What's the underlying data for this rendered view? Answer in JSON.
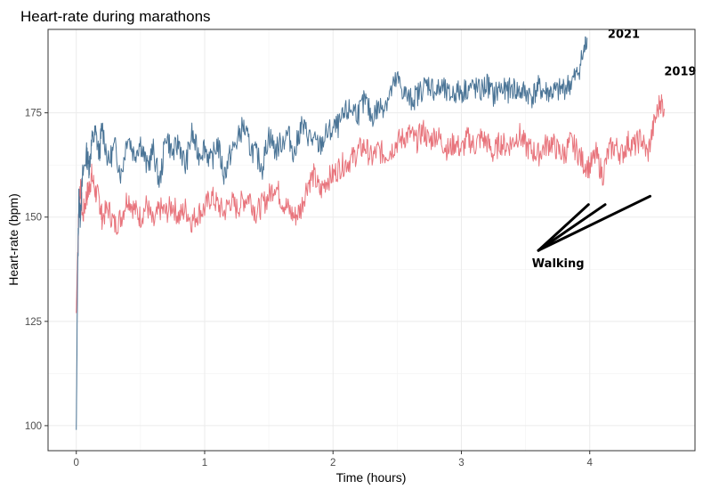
{
  "chart_data": {
    "type": "line",
    "title": "Heart-rate during marathons",
    "xlabel": "Time (hours)",
    "ylabel": "Heart-rate (bpm)",
    "xlim": [
      -0.22,
      4.82
    ],
    "ylim": [
      94,
      195
    ],
    "xticks": [
      0,
      1,
      2,
      3,
      4
    ],
    "yticks": [
      100,
      125,
      150,
      175
    ],
    "grid": true,
    "series": [
      {
        "name": "2021",
        "color": "#4a7496",
        "x": [
          0,
          0.01,
          0.02,
          0.03,
          0.05,
          0.08,
          0.1,
          0.12,
          0.15,
          0.18,
          0.2,
          0.25,
          0.3,
          0.35,
          0.4,
          0.45,
          0.5,
          0.55,
          0.6,
          0.65,
          0.7,
          0.75,
          0.8,
          0.85,
          0.9,
          0.95,
          1.0,
          1.05,
          1.1,
          1.15,
          1.2,
          1.25,
          1.3,
          1.35,
          1.4,
          1.45,
          1.5,
          1.55,
          1.6,
          1.65,
          1.7,
          1.75,
          1.8,
          1.85,
          1.9,
          1.95,
          2.0,
          2.05,
          2.1,
          2.15,
          2.2,
          2.25,
          2.3,
          2.35,
          2.4,
          2.45,
          2.5,
          2.55,
          2.6,
          2.65,
          2.7,
          2.75,
          2.8,
          2.85,
          2.9,
          2.95,
          3.0,
          3.05,
          3.1,
          3.15,
          3.2,
          3.25,
          3.3,
          3.35,
          3.4,
          3.45,
          3.5,
          3.55,
          3.6,
          3.65,
          3.7,
          3.75,
          3.8,
          3.85,
          3.9,
          3.95,
          3.98
        ],
        "y": [
          99,
          135,
          155,
          150,
          160,
          165,
          162,
          168,
          170,
          165,
          172,
          163,
          167,
          160,
          170,
          165,
          168,
          162,
          166,
          158,
          170,
          165,
          168,
          162,
          170,
          165,
          167,
          163,
          168,
          160,
          165,
          168,
          172,
          167,
          165,
          162,
          170,
          166,
          168,
          170,
          165,
          172,
          170,
          168,
          167,
          170,
          171,
          172,
          175,
          176,
          175,
          178,
          174,
          176,
          177,
          180,
          183,
          180,
          178,
          179,
          181,
          182,
          180,
          181,
          179,
          180,
          180,
          181,
          181,
          180,
          182,
          179,
          181,
          180,
          181,
          180,
          180,
          179,
          181,
          180,
          180,
          180,
          181,
          182,
          184,
          189,
          193
        ]
      },
      {
        "name": "2019",
        "color": "#e8747c",
        "x": [
          0,
          0.01,
          0.02,
          0.03,
          0.05,
          0.08,
          0.1,
          0.12,
          0.15,
          0.18,
          0.2,
          0.25,
          0.3,
          0.35,
          0.4,
          0.45,
          0.5,
          0.55,
          0.6,
          0.65,
          0.7,
          0.75,
          0.8,
          0.85,
          0.9,
          0.95,
          1.0,
          1.05,
          1.1,
          1.15,
          1.2,
          1.25,
          1.3,
          1.35,
          1.4,
          1.45,
          1.5,
          1.55,
          1.6,
          1.65,
          1.7,
          1.75,
          1.8,
          1.85,
          1.9,
          1.95,
          2.0,
          2.05,
          2.1,
          2.15,
          2.2,
          2.25,
          2.3,
          2.35,
          2.4,
          2.45,
          2.5,
          2.55,
          2.6,
          2.65,
          2.7,
          2.75,
          2.8,
          2.85,
          2.9,
          2.95,
          3.0,
          3.05,
          3.1,
          3.15,
          3.2,
          3.25,
          3.3,
          3.35,
          3.4,
          3.45,
          3.5,
          3.55,
          3.6,
          3.65,
          3.7,
          3.75,
          3.8,
          3.85,
          3.9,
          3.95,
          4.0,
          4.05,
          4.1,
          4.15,
          4.2,
          4.25,
          4.3,
          4.35,
          4.4,
          4.45,
          4.5,
          4.55,
          4.58
        ],
        "y": [
          127,
          140,
          152,
          158,
          150,
          155,
          157,
          160,
          156,
          154,
          150,
          152,
          148,
          150,
          155,
          152,
          150,
          153,
          148,
          152,
          151,
          153,
          150,
          152,
          149,
          151,
          152,
          155,
          153,
          151,
          154,
          152,
          154,
          155,
          151,
          153,
          155,
          158,
          154,
          152,
          150,
          152,
          158,
          160,
          156,
          159,
          160,
          162,
          163,
          164,
          166,
          167,
          164,
          166,
          165,
          166,
          168,
          169,
          170,
          168,
          171,
          168,
          170,
          168,
          166,
          168,
          166,
          169,
          167,
          169,
          168,
          165,
          168,
          167,
          168,
          170,
          167,
          166,
          165,
          167,
          168,
          166,
          165,
          168,
          166,
          163,
          162,
          165,
          160,
          166,
          167,
          165,
          168,
          167,
          169,
          165,
          172,
          178,
          176
        ]
      }
    ],
    "annotations": [
      {
        "text": "2021",
        "x": 4.14,
        "y": 193
      },
      {
        "text": "2019",
        "x": 4.58,
        "y": 184
      },
      {
        "text": "Walking",
        "x": 3.55,
        "y": 138
      },
      {
        "from": [
          3.6,
          142
        ],
        "to": [
          3.99,
          153
        ]
      },
      {
        "from": [
          3.6,
          142
        ],
        "to": [
          4.12,
          153
        ]
      },
      {
        "from": [
          3.6,
          142
        ],
        "to": [
          4.47,
          155
        ]
      }
    ]
  }
}
